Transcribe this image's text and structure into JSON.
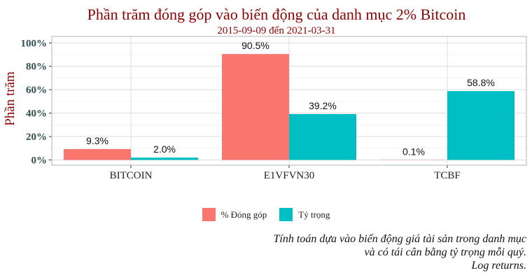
{
  "chart_data": {
    "type": "bar",
    "title": "Phần trăm đóng góp vào biến động của danh mục 2% Bitcoin",
    "subtitle": "2015-09-09 đến 2021-03-31",
    "xlabel": "",
    "ylabel": "Phần trăm",
    "ylim": [
      0,
      100
    ],
    "yticks": [
      "0%",
      "20%",
      "40%",
      "60%",
      "80%",
      "100%"
    ],
    "categories": [
      "BITCOIN",
      "E1VFVN30",
      "TCBF"
    ],
    "series": [
      {
        "name": "% Đóng góp",
        "values": [
          9.3,
          90.5,
          0.1
        ],
        "labels": [
          "9.3%",
          "90.5%",
          "0.1%"
        ],
        "color": "#f8766d"
      },
      {
        "name": "Tỷ trọng",
        "values": [
          2.0,
          39.2,
          58.8
        ],
        "labels": [
          "2.0%",
          "39.2%",
          "58.8%"
        ],
        "color": "#00bfc4"
      }
    ],
    "grid": true,
    "legend_position": "bottom"
  },
  "caption": [
    "Tính toán dựa vào biến động giá tài sản trong danh mục",
    "và có tái cân bằng tỷ trọng mỗi quý.",
    "Log returns."
  ],
  "colors": {
    "title": "#8b0000",
    "axis_text": "#2f4f4f",
    "panel_border": "#b3b3b3"
  }
}
